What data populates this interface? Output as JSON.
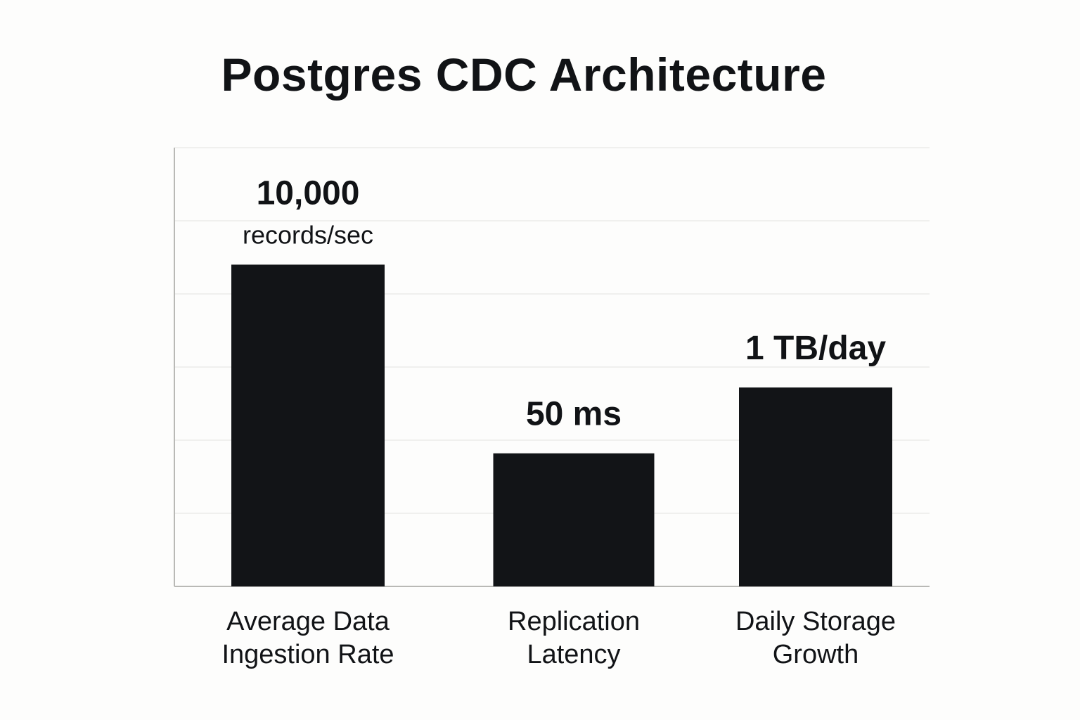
{
  "chart_data": {
    "type": "bar",
    "title": "Postgres CDC Architecture",
    "categories": [
      [
        "Average Data",
        "Ingestion Rate"
      ],
      [
        "Replication",
        "Latency"
      ],
      [
        "Daily Storage",
        "Growth"
      ]
    ],
    "values": [
      4.4,
      1.82,
      2.72
    ],
    "ylim": [
      0,
      6
    ],
    "grid": true,
    "value_labels": [
      {
        "main": "10,000",
        "sub": "records/sec"
      },
      {
        "main": "50 ms",
        "sub": ""
      },
      {
        "main": "1 TB/day",
        "sub": ""
      }
    ],
    "colors": {
      "bar": "#121417",
      "grid": "#ececea",
      "axis": "#b9b9b6"
    }
  }
}
